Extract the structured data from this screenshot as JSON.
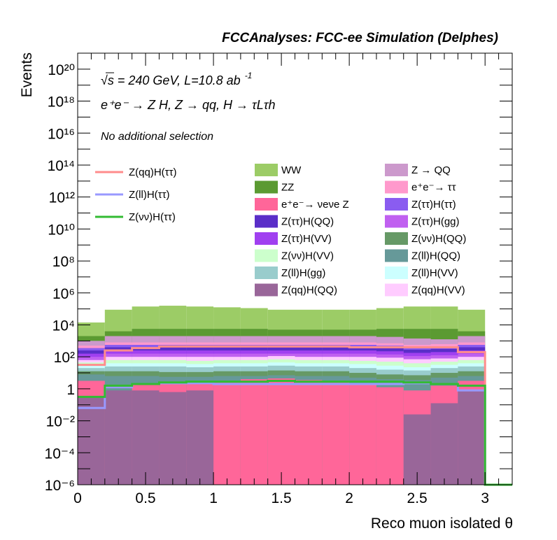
{
  "chart_data": {
    "type": "histogram-stacked",
    "title": "FCCAnalyses: FCC-ee Simulation (Delphes)",
    "annotations": {
      "energy": "√s = 240 GeV, L=10.8 ab",
      "energy_exp": "-1",
      "process": "e⁺e⁻ → Z H, Z → qq, H → τLτh",
      "selection": "No additional selection"
    },
    "xlabel": "Reco muon isolated θ",
    "ylabel": "Events",
    "xlim": [
      0,
      3.2
    ],
    "ylim_log10": [
      -6,
      21
    ],
    "yscale": "log",
    "x_ticks": [
      "0",
      "0.5",
      "1",
      "1.5",
      "2",
      "2.5",
      "3"
    ],
    "y_ticks": [
      "10⁻⁶",
      "10⁻⁴",
      "10⁻²",
      "1",
      "10²",
      "10⁴",
      "10⁶",
      "10⁸",
      "10¹⁰",
      "10¹²",
      "10¹⁴",
      "10¹⁶",
      "10¹⁸",
      "10²⁰"
    ],
    "bin_edges": [
      0,
      0.2,
      0.4,
      0.6,
      0.8,
      1.0,
      1.2,
      1.4,
      1.6,
      1.8,
      2.0,
      2.2,
      2.4,
      2.6,
      2.8,
      3.0,
      3.2
    ],
    "stack_log10_tops": {
      "Z(qq)H(QQ)": [
        -0.5,
        -0.1,
        -0.1,
        -0.2,
        -0.1,
        -6,
        -6,
        -6,
        -6,
        -6,
        -6,
        -6,
        -1.6,
        -0.9,
        -0.1,
        -6
      ],
      "e⁺e⁻→ νeνe Z": [
        0.5,
        -3.6,
        0.35,
        0.35,
        0.35,
        0.5,
        0.6,
        0.65,
        0.55,
        0.5,
        0.35,
        0.1,
        -0.1,
        0.2,
        0.5,
        -6
      ],
      "Z(ll)H(QQ)": [
        0.9,
        0.8,
        0.8,
        0.75,
        0.75,
        0.8,
        0.8,
        0.85,
        0.8,
        0.8,
        0.7,
        0.6,
        0.55,
        0.7,
        0.8,
        -6
      ],
      "Z(νν)H(QQ)": [
        1.1,
        1.1,
        1.1,
        1.05,
        1.05,
        1.1,
        1.1,
        1.15,
        1.1,
        1.1,
        1.0,
        0.9,
        0.85,
        1.0,
        1.1,
        -6
      ],
      "Z(ll)H(gg)": [
        1.3,
        1.4,
        1.4,
        1.4,
        1.35,
        1.4,
        1.4,
        1.45,
        1.4,
        1.4,
        1.3,
        1.2,
        1.15,
        1.3,
        1.4,
        -6
      ],
      "Z(ll)H(VV)": [
        1.5,
        1.6,
        1.6,
        1.6,
        1.55,
        1.6,
        1.6,
        1.65,
        1.6,
        1.6,
        1.55,
        1.45,
        1.35,
        1.5,
        1.6,
        -6
      ],
      "Z(νν)H(VV)": [
        1.65,
        1.8,
        1.8,
        1.8,
        1.75,
        1.8,
        1.8,
        1.85,
        1.8,
        1.8,
        1.75,
        1.7,
        1.6,
        1.7,
        1.8,
        -6
      ],
      "Z(qq)H(VV)": [
        1.8,
        2.0,
        2.0,
        2.0,
        2.0,
        2.0,
        2.0,
        2.05,
        2.0,
        2.0,
        2.0,
        1.95,
        1.85,
        1.9,
        2.0,
        -6
      ],
      "Z(ττ)H(gg)": [
        2.0,
        2.2,
        2.2,
        2.2,
        2.2,
        2.2,
        2.2,
        2.2,
        2.2,
        2.2,
        2.2,
        2.15,
        2.05,
        2.1,
        2.2,
        -6
      ],
      "Z(ττ)H(VV)": [
        2.2,
        2.4,
        2.4,
        2.4,
        2.4,
        2.4,
        2.4,
        2.4,
        2.4,
        2.4,
        2.4,
        2.35,
        2.25,
        2.3,
        2.4,
        -6
      ],
      "Z(ττ)H(QQ)": [
        2.4,
        2.6,
        2.6,
        2.6,
        2.6,
        2.6,
        2.6,
        2.6,
        2.6,
        2.6,
        2.6,
        2.55,
        2.45,
        2.5,
        2.6,
        -6
      ],
      "Z(ττ)H(ττ)": [
        2.55,
        2.75,
        2.75,
        2.75,
        2.75,
        2.75,
        2.75,
        2.75,
        2.75,
        2.75,
        2.75,
        2.7,
        2.6,
        2.65,
        2.75,
        -6
      ],
      "e⁺e⁻→ ττ": [
        2.7,
        2.9,
        2.9,
        2.9,
        2.9,
        2.9,
        2.9,
        2.9,
        2.9,
        2.9,
        2.9,
        2.85,
        2.75,
        2.8,
        2.9,
        -6
      ],
      "Z → QQ": [
        3.0,
        3.3,
        3.3,
        3.3,
        3.3,
        3.3,
        3.3,
        3.3,
        3.3,
        3.3,
        3.3,
        3.25,
        3.15,
        3.1,
        3.3,
        -6
      ],
      "ZZ": [
        3.3,
        3.6,
        3.75,
        3.75,
        3.75,
        3.75,
        3.75,
        3.7,
        3.7,
        3.7,
        3.7,
        3.75,
        3.75,
        3.75,
        3.6,
        -6
      ],
      "WW": [
        4.15,
        4.95,
        5.15,
        5.2,
        5.15,
        5.1,
        5.05,
        4.95,
        4.95,
        4.95,
        4.95,
        5.05,
        5.15,
        5.15,
        4.95,
        -6
      ]
    },
    "signal_log10": {
      "Z(qq)H(ττ)": [
        1.5,
        2.4,
        2.55,
        2.65,
        2.65,
        2.65,
        2.65,
        2.65,
        2.65,
        2.65,
        2.6,
        2.6,
        2.6,
        2.6,
        2.3,
        -6
      ],
      "Z(ll)H(ττ)": [
        -1.2,
        0.1,
        0.3,
        0.35,
        0.35,
        0.3,
        0.3,
        0.3,
        0.3,
        0.3,
        0.3,
        0.3,
        0.35,
        0.3,
        -0.1,
        -6
      ],
      "Z(νν)H(ττ)": [
        -0.5,
        0.2,
        0.3,
        0.4,
        0.45,
        0.45,
        0.45,
        0.5,
        0.45,
        0.45,
        0.45,
        0.45,
        0.4,
        0.3,
        0.2,
        -6
      ]
    },
    "stack_colors": {
      "WW": "#9ccc66",
      "ZZ": "#5b9a32",
      "e⁺e⁻→ νeνe Z": "#ff6699",
      "Z → QQ": "#cc99cc",
      "e⁺e⁻→ ττ": "#ff99cc",
      "Z(ττ)H(ττ)": "#8a5cf0",
      "Z(ττ)H(QQ)": "#5a2ec8",
      "Z(ττ)H(gg)": "#c060f0",
      "Z(ττ)H(VV)": "#a040f0",
      "Z(νν)H(QQ)": "#669966",
      "Z(νν)H(VV)": "#ccffcc",
      "Z(ll)H(QQ)": "#669999",
      "Z(ll)H(gg)": "#99cccc",
      "Z(ll)H(VV)": "#ccffff",
      "Z(qq)H(QQ)": "#996699",
      "Z(qq)H(VV)": "#ffccff"
    },
    "signal_colors": {
      "Z(qq)H(ττ)": "#ff8c8c",
      "Z(ll)H(ττ)": "#9999ff",
      "Z(νν)H(ττ)": "#33bb33"
    },
    "legend_signal": [
      "Z(qq)H(ττ)",
      "Z(ll)H(ττ)",
      "Z(νν)H(ττ)"
    ],
    "legend_stack": [
      "WW",
      "Z → QQ",
      "ZZ",
      "e⁺e⁻→ ττ",
      "e⁺e⁻→ νeνe Z",
      "Z(ττ)H(ττ)",
      "Z(ττ)H(QQ)",
      "Z(ττ)H(gg)",
      "Z(ττ)H(VV)",
      "Z(νν)H(QQ)",
      "Z(νν)H(VV)",
      "Z(ll)H(QQ)",
      "Z(ll)H(gg)",
      "Z(ll)H(VV)",
      "Z(qq)H(QQ)",
      "Z(qq)H(VV)"
    ]
  }
}
